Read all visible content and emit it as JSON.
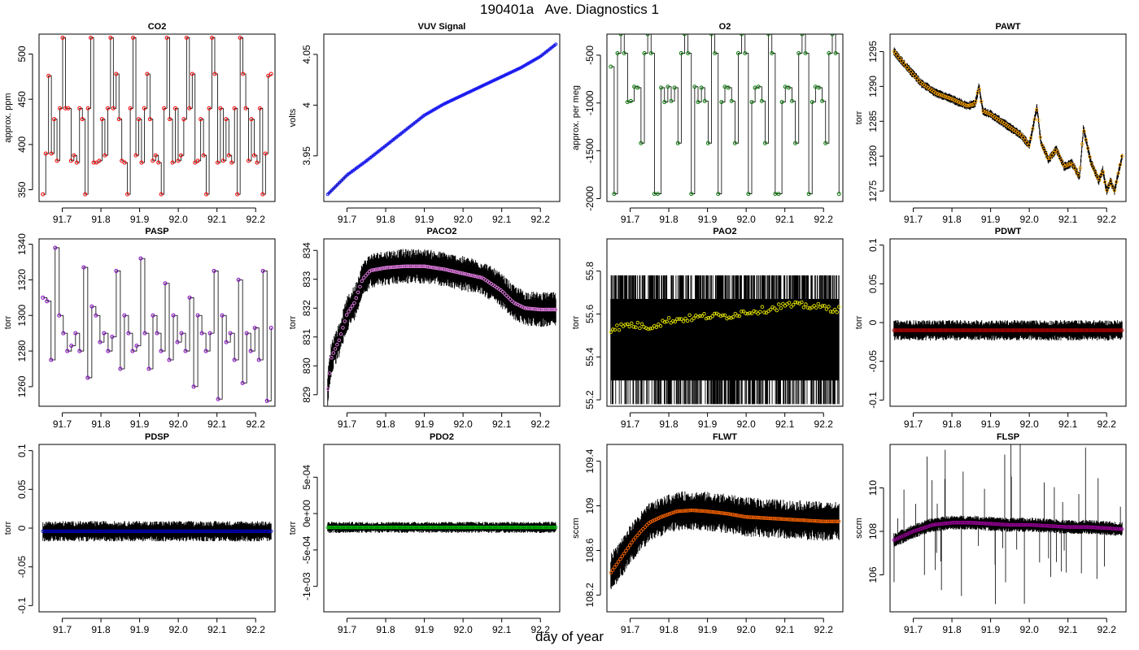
{
  "page": {
    "title": "190401a   Ave. Diagnostics 1",
    "xlabel": "day of year"
  },
  "chart_data": [
    {
      "type": "line",
      "title": "CO2",
      "ylabel": "approx. ppm",
      "xlim": [
        91.64,
        92.25
      ],
      "ylim": [
        337,
        522
      ],
      "yticks": [
        350,
        400,
        450,
        500
      ],
      "xticks": [
        91.7,
        91.8,
        91.9,
        92.0,
        92.1,
        92.2
      ],
      "render": "step-markers",
      "color": "#ff0000",
      "x_start": 91.65,
      "x_end": 92.24,
      "values": [
        345,
        390,
        476,
        390,
        428,
        382,
        440,
        518,
        440,
        440,
        382,
        388,
        380,
        440,
        428,
        345,
        440,
        518,
        380,
        380,
        382,
        428,
        388,
        440,
        518,
        440,
        478,
        428,
        382,
        380,
        345,
        440,
        518,
        388,
        428,
        380,
        440,
        478,
        428,
        382,
        388,
        380,
        345,
        440,
        518,
        428,
        380,
        440,
        382,
        388,
        428,
        518,
        440,
        478,
        380,
        382,
        428,
        388,
        345,
        440,
        518,
        478,
        380,
        440,
        382,
        428,
        388,
        380,
        440,
        345,
        518,
        478,
        440,
        382,
        428,
        388,
        380,
        440,
        345,
        390,
        476,
        478
      ]
    },
    {
      "type": "line",
      "title": "VUV Signal",
      "ylabel": "volts",
      "xlim": [
        91.64,
        92.25
      ],
      "ylim": [
        3.905,
        4.07
      ],
      "yticks": [
        3.95,
        4.0,
        4.05
      ],
      "xticks": [
        91.7,
        91.8,
        91.9,
        92.0,
        92.1,
        92.2
      ],
      "render": "line-markers",
      "color": "#1a1aff",
      "x": [
        91.65,
        91.7,
        91.75,
        91.8,
        91.85,
        91.9,
        91.95,
        92.0,
        92.05,
        92.1,
        92.15,
        92.2,
        92.24
      ],
      "values": [
        3.912,
        3.931,
        3.945,
        3.96,
        3.975,
        3.99,
        4.001,
        4.01,
        4.019,
        4.028,
        4.037,
        4.048,
        4.06
      ]
    },
    {
      "type": "line",
      "title": "O2",
      "ylabel": "approx. per meg",
      "xlim": [
        91.64,
        92.25
      ],
      "ylim": [
        -2030,
        -280
      ],
      "yticks": [
        -2000,
        -1500,
        -1000,
        -500
      ],
      "xticks": [
        91.7,
        91.8,
        91.9,
        92.0,
        92.1,
        92.2
      ],
      "render": "step-markers",
      "color": "#007a00",
      "x_start": 91.65,
      "x_end": 92.24,
      "values": [
        -620,
        -1950,
        -480,
        -280,
        -480,
        -990,
        -980,
        -830,
        -840,
        -1420,
        -480,
        -280,
        -480,
        -1950,
        -1950,
        -840,
        -990,
        -830,
        -980,
        -840,
        -1420,
        -480,
        -280,
        -480,
        -1950,
        -830,
        -990,
        -840,
        -980,
        -1420,
        -280,
        -480,
        -1950,
        -990,
        -830,
        -840,
        -980,
        -1420,
        -480,
        -280,
        -480,
        -1950,
        -990,
        -840,
        -830,
        -980,
        -1420,
        -280,
        -480,
        -1950,
        -1950,
        -990,
        -830,
        -840,
        -980,
        -1420,
        -480,
        -280,
        -480,
        -1950,
        -990,
        -830,
        -840,
        -980,
        -1420,
        -480,
        -280,
        -480,
        -1950
      ]
    },
    {
      "type": "line",
      "title": "PAWT",
      "ylabel": "torr",
      "xlim": [
        91.64,
        92.25
      ],
      "ylim": [
        1273.5,
        1297.5
      ],
      "yticks": [
        1275,
        1280,
        1285,
        1290,
        1295
      ],
      "xticks": [
        91.7,
        91.8,
        91.9,
        92.0,
        92.1,
        92.2
      ],
      "render": "band-markers",
      "color": "#ffa500",
      "noise": 0.6,
      "x": [
        91.65,
        91.68,
        91.72,
        91.76,
        91.8,
        91.84,
        91.86,
        91.87,
        91.88,
        91.9,
        91.94,
        91.98,
        92.0,
        92.02,
        92.03,
        92.05,
        92.07,
        92.09,
        92.11,
        92.13,
        92.14,
        92.16,
        92.18,
        92.19,
        92.2,
        92.21,
        92.22,
        92.24
      ],
      "values": [
        1295,
        1293,
        1290.5,
        1289,
        1288.2,
        1287.2,
        1287.5,
        1290,
        1286.5,
        1286,
        1284.5,
        1283,
        1281.5,
        1287,
        1282,
        1279.5,
        1281,
        1278.5,
        1279,
        1277,
        1284,
        1279,
        1276.5,
        1278,
        1275,
        1276.5,
        1275,
        1280
      ]
    },
    {
      "type": "line",
      "title": "PASP",
      "ylabel": "torr",
      "xlim": [
        91.64,
        92.25
      ],
      "ylim": [
        1249,
        1343
      ],
      "yticks": [
        1260,
        1280,
        1300,
        1320,
        1340
      ],
      "xticks": [
        91.7,
        91.8,
        91.9,
        92.0,
        92.1,
        92.2
      ],
      "render": "step-markers",
      "color": "#8000c0",
      "x_start": 91.65,
      "x_end": 92.24,
      "values": [
        1310,
        1308,
        1275,
        1338,
        1300,
        1290,
        1280,
        1283,
        1290,
        1280,
        1327,
        1265,
        1305,
        1300,
        1285,
        1290,
        1280,
        1288,
        1325,
        1270,
        1300,
        1290,
        1280,
        1283,
        1332,
        1290,
        1270,
        1300,
        1290,
        1280,
        1318,
        1275,
        1300,
        1285,
        1290,
        1280,
        1310,
        1260,
        1300,
        1290,
        1280,
        1290,
        1325,
        1253,
        1300,
        1285,
        1290,
        1275,
        1320,
        1262,
        1290,
        1280,
        1293,
        1275,
        1325,
        1252,
        1293
      ]
    },
    {
      "type": "line",
      "title": "PACO2",
      "ylabel": "torr",
      "xlim": [
        91.64,
        92.25
      ],
      "ylim": [
        828.6,
        834.4
      ],
      "yticks": [
        829,
        830,
        831,
        832,
        833,
        834
      ],
      "xticks": [
        91.7,
        91.8,
        91.9,
        92.0,
        92.1,
        92.2
      ],
      "render": "band-markers",
      "color": "#ee82ee",
      "noise": 0.55,
      "x": [
        91.65,
        91.66,
        91.68,
        91.7,
        91.72,
        91.74,
        91.76,
        91.8,
        91.85,
        91.9,
        91.95,
        92.0,
        92.05,
        92.1,
        92.13,
        92.16,
        92.2,
        92.24
      ],
      "values": [
        829.2,
        830.3,
        830.9,
        831.8,
        832.2,
        833.0,
        833.3,
        833.4,
        833.45,
        833.45,
        833.35,
        833.2,
        833.05,
        832.6,
        832.2,
        832.0,
        831.95,
        831.95
      ]
    },
    {
      "type": "line",
      "title": "PAO2",
      "ylabel": "torr",
      "xlim": [
        91.64,
        92.25
      ],
      "ylim": [
        55.17,
        55.95
      ],
      "yticks": [
        55.2,
        55.4,
        55.6,
        55.8
      ],
      "xticks": [
        91.7,
        91.8,
        91.9,
        92.0,
        92.1,
        92.2
      ],
      "render": "quantized-markers",
      "color": "#e6e600",
      "levels": [
        55.18,
        55.29,
        55.42,
        55.55,
        55.67,
        55.78
      ],
      "x": [
        91.65,
        91.7,
        91.75,
        91.8,
        91.85,
        91.9,
        91.95,
        92.0,
        92.05,
        92.1,
        92.15,
        92.2,
        92.24
      ],
      "values": [
        55.53,
        55.55,
        55.54,
        55.57,
        55.58,
        55.59,
        55.59,
        55.61,
        55.62,
        55.64,
        55.64,
        55.63,
        55.62
      ]
    },
    {
      "type": "line",
      "title": "PDWT",
      "ylabel": "torr",
      "xlim": [
        91.64,
        92.25
      ],
      "ylim": [
        -0.108,
        0.108
      ],
      "yticks": [
        -0.1,
        -0.05,
        0.0,
        0.05,
        0.1
      ],
      "xticks": [
        91.7,
        91.8,
        91.9,
        92.0,
        92.1,
        92.2
      ],
      "render": "band-markers",
      "color": "#c00000",
      "noise": 0.012,
      "x": [
        91.65,
        92.24
      ],
      "values": [
        -0.01,
        -0.01
      ]
    },
    {
      "type": "line",
      "title": "PDSP",
      "ylabel": "torr",
      "xlim": [
        91.64,
        92.25
      ],
      "ylim": [
        -0.108,
        0.108
      ],
      "yticks": [
        -0.1,
        -0.05,
        0.0,
        0.05,
        0.1
      ],
      "xticks": [
        91.7,
        91.8,
        91.9,
        92.0,
        92.1,
        92.2
      ],
      "render": "band-markers",
      "color": "#0000c0",
      "noise": 0.012,
      "x": [
        91.65,
        92.24
      ],
      "values": [
        -0.004,
        -0.004
      ]
    },
    {
      "type": "line",
      "title": "PDO2",
      "ylabel": "torr",
      "xlim": [
        91.64,
        92.25
      ],
      "ylim": [
        -0.00135,
        0.00095
      ],
      "yticks": [
        -0.001,
        -0.0005,
        0.0,
        0.0005
      ],
      "yticklabels": [
        "-1e-03",
        "-5e-04",
        "0e+00",
        "5e-04"
      ],
      "xticks": [
        91.7,
        91.8,
        91.9,
        92.0,
        92.1,
        92.2
      ],
      "render": "band-markers",
      "color": "#00c000",
      "noise": 7e-05,
      "x": [
        91.65,
        92.24
      ],
      "values": [
        -0.00019,
        -0.00019
      ]
    },
    {
      "type": "line",
      "title": "FLWT",
      "ylabel": "sccm",
      "xlim": [
        91.64,
        92.25
      ],
      "ylim": [
        108.05,
        109.55
      ],
      "yticks": [
        108.2,
        108.6,
        109.0,
        109.4
      ],
      "xticks": [
        91.7,
        91.8,
        91.9,
        92.0,
        92.1,
        92.2
      ],
      "render": "band-markers",
      "color": "#ff6600",
      "noise": 0.16,
      "x": [
        91.65,
        91.67,
        91.69,
        91.71,
        91.73,
        91.75,
        91.78,
        91.82,
        91.86,
        91.9,
        91.95,
        92.0,
        92.05,
        92.1,
        92.15,
        92.2,
        92.24
      ],
      "values": [
        108.4,
        108.5,
        108.6,
        108.7,
        108.78,
        108.85,
        108.9,
        108.95,
        108.96,
        108.95,
        108.93,
        108.9,
        108.89,
        108.88,
        108.87,
        108.86,
        108.86
      ]
    },
    {
      "type": "line",
      "title": "FLSP",
      "ylabel": "sccm",
      "xlim": [
        91.64,
        92.25
      ],
      "ylim": [
        104.3,
        112.0
      ],
      "yticks": [
        106,
        108,
        110
      ],
      "xticks": [
        91.7,
        91.8,
        91.9,
        92.0,
        92.1,
        92.2
      ],
      "render": "band-markers",
      "color": "#a000a0",
      "noise": 0.3,
      "spikes": true,
      "x": [
        91.65,
        91.7,
        91.75,
        91.8,
        91.85,
        91.9,
        91.95,
        92.0,
        92.05,
        92.1,
        92.15,
        92.2,
        92.24
      ],
      "values": [
        107.6,
        108.0,
        108.3,
        108.4,
        108.4,
        108.35,
        108.3,
        108.3,
        108.25,
        108.2,
        108.2,
        108.15,
        108.1
      ]
    }
  ]
}
